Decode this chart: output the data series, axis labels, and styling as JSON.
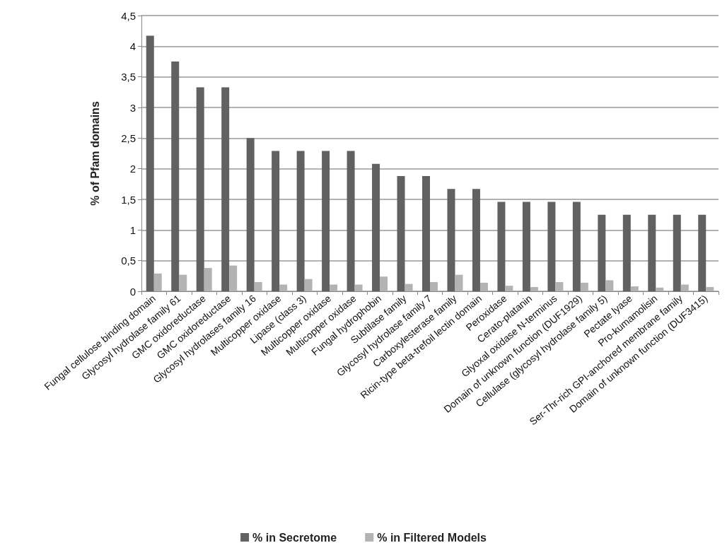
{
  "chart_data": {
    "type": "bar",
    "ylabel": "% of Pfam domains",
    "categories": [
      "Fungal cellulose binding domain",
      "Glycosyl hydrolase family 61",
      "GMC oxidoreductase",
      "GMC oxidoreductase",
      "Glycosyl hydrolases family 16",
      "Multicopper oxidase",
      "Lipase (class 3)",
      "Multicopper oxidase",
      "Multicopper oxidase",
      "Fungal hydrophobin",
      "Subtilase family",
      "Glycosyl hydrolase family 7",
      "Carboxylesterase family",
      "Ricin-type beta-trefoil lectin domain",
      "Peroxidase",
      "Cerato-platanin",
      "Glyoxal oxidase N-terminus",
      "Domain of unknown function (DUF1929)",
      "Cellulase (glycosyl hydrolase family 5)",
      "Pectate lyase",
      "Pro-kumamolisin",
      "Ser-Thr-rich GPI-anchored membrane family",
      "Domain of unknown function (DUF3415)"
    ],
    "series": [
      {
        "name": "% in Secretome",
        "color": "#616161",
        "values": [
          4.17,
          3.75,
          3.33,
          3.33,
          2.5,
          2.29,
          2.29,
          2.29,
          2.29,
          2.08,
          1.88,
          1.88,
          1.67,
          1.67,
          1.46,
          1.46,
          1.46,
          1.46,
          1.25,
          1.25,
          1.25,
          1.25,
          1.25
        ]
      },
      {
        "name": "% in Filtered Models",
        "color": "#b3b3b3",
        "values": [
          0.29,
          0.27,
          0.38,
          0.42,
          0.15,
          0.11,
          0.2,
          0.11,
          0.11,
          0.24,
          0.12,
          0.15,
          0.27,
          0.14,
          0.09,
          0.07,
          0.15,
          0.14,
          0.18,
          0.08,
          0.06,
          0.11,
          0.07
        ]
      }
    ],
    "ylim": [
      0,
      4.5
    ],
    "yticks": [
      0,
      {
        "value": 0.5,
        "label": "0,5"
      },
      1,
      {
        "value": 1.5,
        "label": "1,5"
      },
      2,
      {
        "value": 2.5,
        "label": "2,5"
      },
      3,
      {
        "value": 3.5,
        "label": "3,5"
      },
      4,
      {
        "value": 4.5,
        "label": "4,5"
      }
    ],
    "grid": "y",
    "legend": "bottom"
  }
}
